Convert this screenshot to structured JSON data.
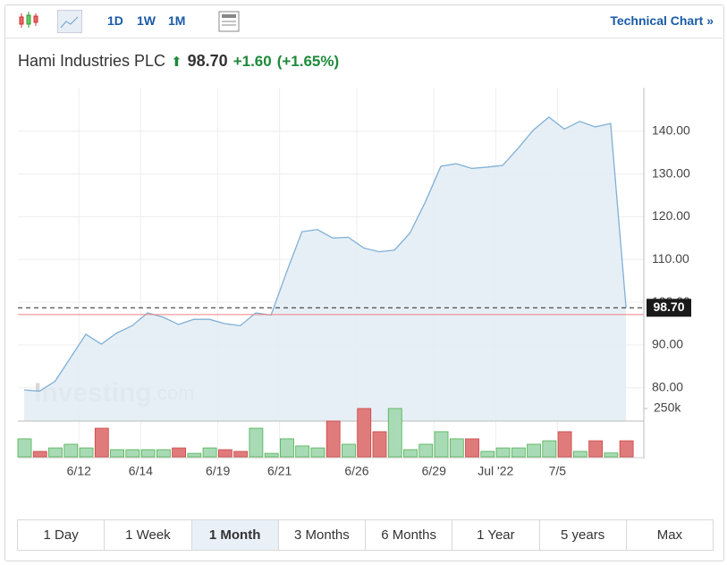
{
  "toolbar": {
    "intervals": [
      "1D",
      "1W",
      "1M"
    ],
    "technical_chart": "Technical Chart »"
  },
  "header": {
    "name": "Hami Industries PLC",
    "price": "98.70",
    "change": "+1.60",
    "change_percent": "(+1.65%)"
  },
  "watermark": {
    "brand": "Investing",
    "suffix": ".com"
  },
  "ranges": [
    "1 Day",
    "1 Week",
    "1 Month",
    "3 Months",
    "6 Months",
    "1 Year",
    "5 years",
    "Max"
  ],
  "selected_range": "1 Month",
  "chart_data": {
    "type": "area",
    "categories": [
      null,
      null,
      null,
      "6/12",
      null,
      null,
      null,
      "6/14",
      null,
      null,
      null,
      null,
      "6/19",
      null,
      null,
      null,
      "6/21",
      null,
      null,
      null,
      null,
      "6/26",
      null,
      null,
      null,
      null,
      "6/29",
      null,
      null,
      null,
      "Jul '22",
      null,
      null,
      null,
      "7/5",
      null,
      null,
      null,
      null,
      null
    ],
    "values": [
      79.5,
      79.2,
      81.5,
      87,
      92.5,
      90.2,
      92.8,
      94.5,
      97.5,
      96.5,
      94.8,
      96,
      96,
      95,
      94.5,
      97.5,
      97,
      107,
      116.5,
      117,
      115,
      115.2,
      112.7,
      111.8,
      112.2,
      116.2,
      123.5,
      131.8,
      132.4,
      131.3,
      131.6,
      132,
      136,
      140.3,
      143.3,
      140.5,
      142.3,
      141,
      141.8,
      98.7
    ],
    "color": "#7fb0d6",
    "ylim": [
      72.2,
      150.2
    ],
    "yticks": [
      {
        "value": 80,
        "label": "80.00"
      },
      {
        "value": 90,
        "label": "90.00"
      },
      {
        "value": 100,
        "label": "100.00"
      },
      {
        "value": 110,
        "label": "110.00"
      },
      {
        "value": 120,
        "label": "120.00"
      },
      {
        "value": 130,
        "label": "130.00"
      },
      {
        "value": 140,
        "label": "140.00"
      }
    ],
    "last_value": {
      "value": 98.7,
      "label": "98.70"
    },
    "reference_line": 97.1,
    "volumes": [
      93000,
      28000,
      46000,
      65000,
      46000,
      148000,
      37000,
      37000,
      37000,
      37000,
      46000,
      18000,
      46000,
      37000,
      28000,
      148000,
      18000,
      93000,
      56000,
      46000,
      185000,
      65000,
      250000,
      130000,
      250000,
      37000,
      65000,
      130000,
      93000,
      93000,
      28000,
      46000,
      46000,
      65000,
      83000,
      130000,
      28000,
      83000,
      20000,
      83000
    ],
    "volume_colors": [
      "#a8dbb5",
      "#e07b7b",
      "#a8dbb5",
      "#a8dbb5",
      "#a8dbb5",
      "#e07b7b",
      "#a8dbb5",
      "#a8dbb5",
      "#a8dbb5",
      "#a8dbb5",
      "#e07b7b",
      "#a8dbb5",
      "#a8dbb5",
      "#e07b7b",
      "#e07b7b",
      "#a8dbb5",
      "#a8dbb5",
      "#a8dbb5",
      "#a8dbb5",
      "#a8dbb5",
      "#e07b7b",
      "#a8dbb5",
      "#e07b7b",
      "#e07b7b",
      "#a8dbb5",
      "#a8dbb5",
      "#a8dbb5",
      "#a8dbb5",
      "#a8dbb5",
      "#e07b7b",
      "#a8dbb5",
      "#a8dbb5",
      "#a8dbb5",
      "#a8dbb5",
      "#a8dbb5",
      "#e07b7b",
      "#a8dbb5",
      "#e07b7b",
      "#a8dbb5",
      "#e07b7b"
    ],
    "y2lim": [
      0,
      370000
    ],
    "y2ticks": [
      {
        "value": 250000,
        "label": "250k"
      }
    ]
  }
}
